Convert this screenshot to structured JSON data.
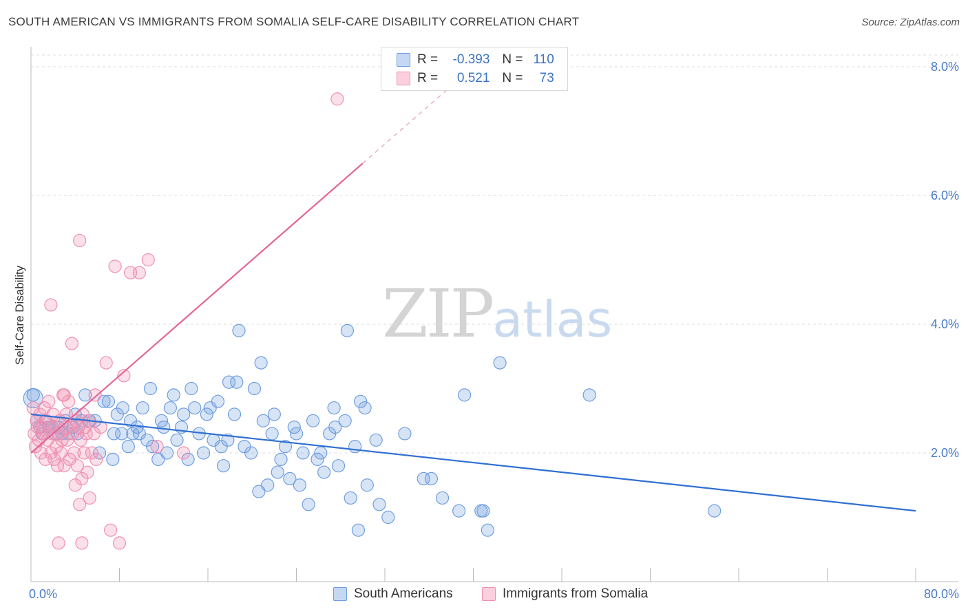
{
  "title": "SOUTH AMERICAN VS IMMIGRANTS FROM SOMALIA SELF-CARE DISABILITY CORRELATION CHART",
  "source": "Source: ZipAtlas.com",
  "watermark": {
    "zip": "ZIP",
    "atlas": "atlas"
  },
  "legend": {
    "rows": [
      {
        "r_label": "R =",
        "r_value": "-0.393",
        "n_label": "N =",
        "n_value": "110",
        "color": "#6f9ee0"
      },
      {
        "r_label": "R =",
        "r_value": "0.521",
        "n_label": "N =",
        "n_value": "73",
        "color": "#f08fb0"
      }
    ]
  },
  "chart_data": {
    "type": "scatter",
    "title": "SOUTH AMERICAN VS IMMIGRANTS FROM SOMALIA SELF-CARE DISABILITY CORRELATION CHART",
    "xlabel": "",
    "ylabel": "Self-Care Disability",
    "xlim": [
      0,
      80
    ],
    "ylim": [
      0,
      8.6
    ],
    "x_tick_labels": [
      "0.0%",
      "80.0%"
    ],
    "y_ticks": [
      2,
      4,
      6,
      8
    ],
    "y_tick_labels": [
      "2.0%",
      "4.0%",
      "6.0%",
      "8.0%"
    ],
    "grid": true,
    "legend_position": "top-center",
    "series": [
      {
        "name": "South Americans",
        "color": "#6f9ee0",
        "trend": {
          "x": [
            0,
            80
          ],
          "y": [
            2.6,
            1.1
          ]
        },
        "points": [
          [
            0.2,
            2.9
          ],
          [
            0.5,
            2.5
          ],
          [
            0.8,
            2.4
          ],
          [
            1.0,
            2.3
          ],
          [
            1.3,
            2.5
          ],
          [
            1.6,
            2.4
          ],
          [
            1.9,
            2.4
          ],
          [
            2.2,
            2.3
          ],
          [
            2.5,
            2.4
          ],
          [
            2.8,
            2.3
          ],
          [
            3.1,
            2.5
          ],
          [
            3.4,
            2.3
          ],
          [
            3.8,
            2.4
          ],
          [
            4.2,
            2.3
          ],
          [
            4.6,
            2.5
          ],
          [
            4.9,
            2.9
          ],
          [
            5.3,
            2.5
          ],
          [
            5.8,
            2.5
          ],
          [
            6.2,
            2.0
          ],
          [
            6.6,
            2.8
          ],
          [
            7.0,
            2.8
          ],
          [
            7.5,
            2.3
          ],
          [
            7.4,
            1.9
          ],
          [
            8.2,
            2.3
          ],
          [
            8.3,
            2.7
          ],
          [
            8.8,
            2.1
          ],
          [
            9.2,
            2.3
          ],
          [
            9.6,
            2.4
          ],
          [
            9.8,
            2.3
          ],
          [
            10.1,
            2.7
          ],
          [
            10.5,
            2.2
          ],
          [
            10.8,
            3.0
          ],
          [
            11.0,
            2.1
          ],
          [
            11.5,
            1.9
          ],
          [
            11.8,
            2.5
          ],
          [
            12.0,
            2.4
          ],
          [
            12.3,
            2.0
          ],
          [
            12.6,
            2.7
          ],
          [
            13.2,
            2.2
          ],
          [
            13.6,
            2.4
          ],
          [
            13.8,
            2.6
          ],
          [
            14.2,
            1.9
          ],
          [
            14.5,
            3.0
          ],
          [
            14.8,
            2.7
          ],
          [
            15.2,
            2.3
          ],
          [
            15.6,
            2.0
          ],
          [
            15.9,
            2.6
          ],
          [
            16.2,
            2.7
          ],
          [
            16.5,
            2.2
          ],
          [
            16.9,
            2.8
          ],
          [
            17.2,
            2.1
          ],
          [
            17.4,
            1.8
          ],
          [
            17.8,
            2.2
          ],
          [
            17.9,
            3.1
          ],
          [
            18.4,
            2.6
          ],
          [
            18.6,
            3.1
          ],
          [
            18.8,
            3.9
          ],
          [
            19.3,
            2.1
          ],
          [
            19.9,
            2.0
          ],
          [
            20.2,
            3.0
          ],
          [
            20.6,
            1.4
          ],
          [
            20.8,
            3.4
          ],
          [
            21.0,
            2.5
          ],
          [
            21.4,
            1.5
          ],
          [
            21.8,
            2.3
          ],
          [
            22.0,
            2.6
          ],
          [
            22.3,
            1.7
          ],
          [
            22.6,
            1.9
          ],
          [
            23.0,
            2.1
          ],
          [
            23.4,
            1.6
          ],
          [
            23.8,
            2.4
          ],
          [
            24.0,
            2.3
          ],
          [
            24.3,
            1.5
          ],
          [
            24.6,
            2.0
          ],
          [
            25.1,
            1.2
          ],
          [
            25.5,
            2.5
          ],
          [
            25.9,
            1.9
          ],
          [
            26.2,
            2.0
          ],
          [
            26.5,
            1.7
          ],
          [
            27.0,
            2.3
          ],
          [
            27.4,
            2.7
          ],
          [
            27.5,
            2.4
          ],
          [
            27.8,
            1.8
          ],
          [
            28.4,
            2.5
          ],
          [
            28.6,
            3.9
          ],
          [
            28.9,
            1.3
          ],
          [
            29.3,
            2.1
          ],
          [
            29.6,
            0.8
          ],
          [
            29.8,
            2.8
          ],
          [
            30.2,
            2.7
          ],
          [
            30.4,
            1.5
          ],
          [
            31.2,
            2.2
          ],
          [
            31.5,
            1.2
          ],
          [
            32.3,
            1.0
          ],
          [
            35.5,
            1.6
          ],
          [
            36.2,
            1.6
          ],
          [
            37.2,
            1.3
          ],
          [
            38.7,
            1.1
          ],
          [
            39.2,
            2.9
          ],
          [
            40.7,
            1.1
          ],
          [
            40.9,
            1.1
          ],
          [
            41.3,
            0.8
          ],
          [
            42.4,
            3.4
          ],
          [
            50.5,
            2.9
          ],
          [
            61.8,
            1.1
          ],
          [
            33.8,
            2.3
          ],
          [
            12.9,
            2.9
          ],
          [
            4.0,
            2.6
          ],
          [
            9.0,
            2.5
          ],
          [
            7.8,
            2.6
          ]
        ]
      },
      {
        "name": "Immigrants from Somalia",
        "color": "#f08fb0",
        "trend": {
          "x": [
            0,
            30
          ],
          "y": [
            2.0,
            6.5
          ]
        },
        "trend_dashed": {
          "x": [
            30,
            38
          ],
          "y": [
            6.5,
            7.7
          ]
        },
        "points": [
          [
            0.2,
            2.7
          ],
          [
            0.3,
            2.3
          ],
          [
            0.4,
            2.1
          ],
          [
            0.5,
            2.5
          ],
          [
            0.6,
            2.4
          ],
          [
            0.7,
            2.2
          ],
          [
            0.8,
            2.6
          ],
          [
            0.9,
            2.0
          ],
          [
            1.0,
            2.4
          ],
          [
            1.1,
            2.3
          ],
          [
            1.2,
            2.7
          ],
          [
            1.3,
            1.9
          ],
          [
            1.4,
            2.5
          ],
          [
            1.5,
            2.2
          ],
          [
            1.6,
            2.8
          ],
          [
            1.7,
            2.4
          ],
          [
            1.8,
            2.0
          ],
          [
            1.9,
            2.3
          ],
          [
            2.0,
            2.6
          ],
          [
            2.1,
            1.9
          ],
          [
            2.2,
            2.4
          ],
          [
            2.3,
            2.1
          ],
          [
            2.4,
            1.8
          ],
          [
            2.5,
            2.3
          ],
          [
            2.6,
            2.5
          ],
          [
            2.7,
            2.0
          ],
          [
            2.8,
            2.2
          ],
          [
            2.9,
            2.9
          ],
          [
            3.0,
            1.8
          ],
          [
            3.1,
            2.4
          ],
          [
            3.2,
            2.6
          ],
          [
            3.3,
            2.2
          ],
          [
            3.4,
            2.8
          ],
          [
            3.5,
            1.9
          ],
          [
            3.6,
            2.4
          ],
          [
            3.7,
            3.7
          ],
          [
            3.8,
            2.3
          ],
          [
            3.9,
            2.0
          ],
          [
            4.0,
            1.5
          ],
          [
            4.1,
            2.5
          ],
          [
            4.2,
            1.8
          ],
          [
            4.3,
            2.4
          ],
          [
            4.4,
            1.2
          ],
          [
            4.5,
            2.2
          ],
          [
            4.6,
            1.6
          ],
          [
            4.7,
            2.6
          ],
          [
            4.8,
            2.0
          ],
          [
            4.9,
            2.4
          ],
          [
            5.0,
            2.3
          ],
          [
            5.1,
            1.7
          ],
          [
            5.2,
            2.5
          ],
          [
            5.3,
            1.3
          ],
          [
            5.5,
            2.0
          ],
          [
            5.7,
            2.3
          ],
          [
            5.9,
            1.9
          ],
          [
            6.3,
            2.4
          ],
          [
            6.8,
            3.4
          ],
          [
            7.2,
            0.8
          ],
          [
            7.6,
            4.9
          ],
          [
            8.0,
            0.6
          ],
          [
            8.4,
            3.2
          ],
          [
            9.0,
            4.8
          ],
          [
            9.8,
            4.8
          ],
          [
            10.6,
            5.0
          ],
          [
            11.4,
            2.1
          ],
          [
            13.8,
            2.0
          ],
          [
            4.4,
            5.3
          ],
          [
            1.8,
            4.3
          ],
          [
            2.5,
            0.6
          ],
          [
            4.6,
            0.6
          ],
          [
            27.7,
            7.5
          ],
          [
            3.0,
            2.9
          ],
          [
            5.8,
            2.9
          ]
        ]
      }
    ]
  }
}
